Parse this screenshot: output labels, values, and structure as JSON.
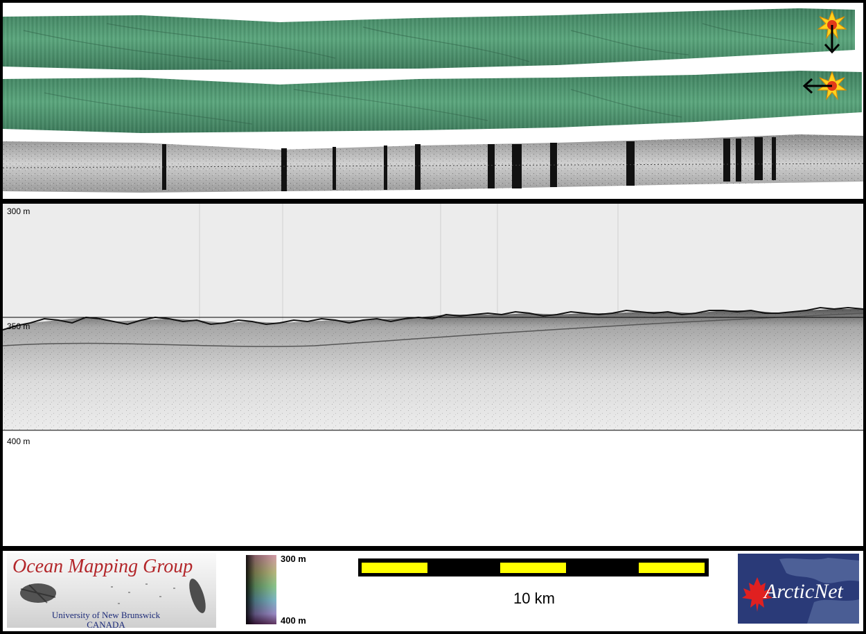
{
  "profile": {
    "depth_labels": [
      "300 m",
      "350 m",
      "400 m"
    ]
  },
  "logos": {
    "omg_title": "Ocean Mapping Group",
    "omg_university": "University of New Brunswick",
    "omg_country": "CANADA",
    "arctic_wordmark": "ArcticNet"
  },
  "colorbar": {
    "top_label": "300 m",
    "bottom_label": "400 m"
  },
  "scale_bar": {
    "label": "10 km"
  },
  "icons": {
    "sun_top": "sun-illumination-icon",
    "sun_middle": "sun-illumination-icon",
    "arrow_top": "arrow-down-icon",
    "arrow_middle": "arrow-left-icon",
    "maple_leaf": "maple-leaf-icon"
  },
  "colors": {
    "bathymetry_green": "#4f9a72",
    "scale_yellow": "#ffff00",
    "omg_red": "#b3262a",
    "arctic_blue": "#2a3a78",
    "maple_red": "#e02020"
  }
}
